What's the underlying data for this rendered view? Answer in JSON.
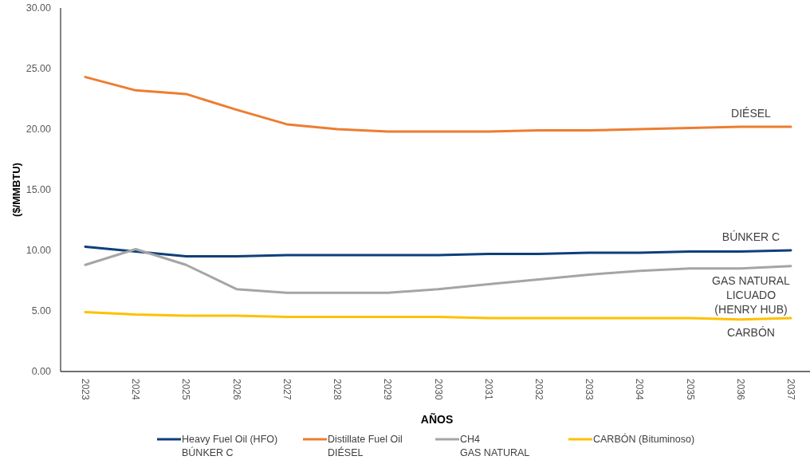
{
  "chart_data": {
    "type": "line",
    "xlabel": "AÑOS",
    "ylabel": "($/MMBTU)",
    "categories": [
      "2023",
      "2024",
      "2025",
      "2026",
      "2027",
      "2028",
      "2029",
      "2030",
      "2031",
      "2032",
      "2033",
      "2034",
      "2035",
      "2036",
      "2037"
    ],
    "series": [
      {
        "name": "Heavy Fuel Oil (HFO)\nBÚNKER C",
        "color": "#0e3f7a",
        "values": [
          10.3,
          9.9,
          9.5,
          9.5,
          9.6,
          9.6,
          9.6,
          9.6,
          9.7,
          9.7,
          9.8,
          9.8,
          9.9,
          9.9,
          10.0
        ]
      },
      {
        "name": "Distillate Fuel Oil\nDIÉSEL",
        "color": "#ed7d31",
        "values": [
          24.3,
          23.2,
          22.9,
          21.6,
          20.4,
          20.0,
          19.8,
          19.8,
          19.8,
          19.9,
          19.9,
          20.0,
          20.1,
          20.2,
          20.2
        ]
      },
      {
        "name": "CH4\nGAS NATURAL",
        "color": "#a5a5a5",
        "values": [
          8.8,
          10.1,
          8.8,
          6.8,
          6.5,
          6.5,
          6.5,
          6.8,
          7.2,
          7.6,
          8.0,
          8.3,
          8.5,
          8.5,
          8.7
        ]
      },
      {
        "name": "CARBÓN (Bituminoso)",
        "color": "#ffc000",
        "values": [
          4.9,
          4.7,
          4.6,
          4.6,
          4.5,
          4.5,
          4.5,
          4.5,
          4.4,
          4.4,
          4.4,
          4.4,
          4.4,
          4.3,
          4.4
        ]
      }
    ],
    "ylim": [
      0,
      30
    ],
    "yticks": [
      {
        "value": 0,
        "label": "0.00"
      },
      {
        "value": 5,
        "label": "5.00"
      },
      {
        "value": 10,
        "label": "10.00"
      },
      {
        "value": 15,
        "label": "15.00"
      },
      {
        "value": 20,
        "label": "20.00"
      },
      {
        "value": 25,
        "label": "25.00"
      },
      {
        "value": 30,
        "label": "30.00"
      }
    ],
    "annotations": [
      "BÚNKER C",
      "DIÉSEL",
      "GAS NATURAL\nLICUADO\n(HENRY HUB)",
      "CARBÓN"
    ],
    "legend": "bottom"
  }
}
